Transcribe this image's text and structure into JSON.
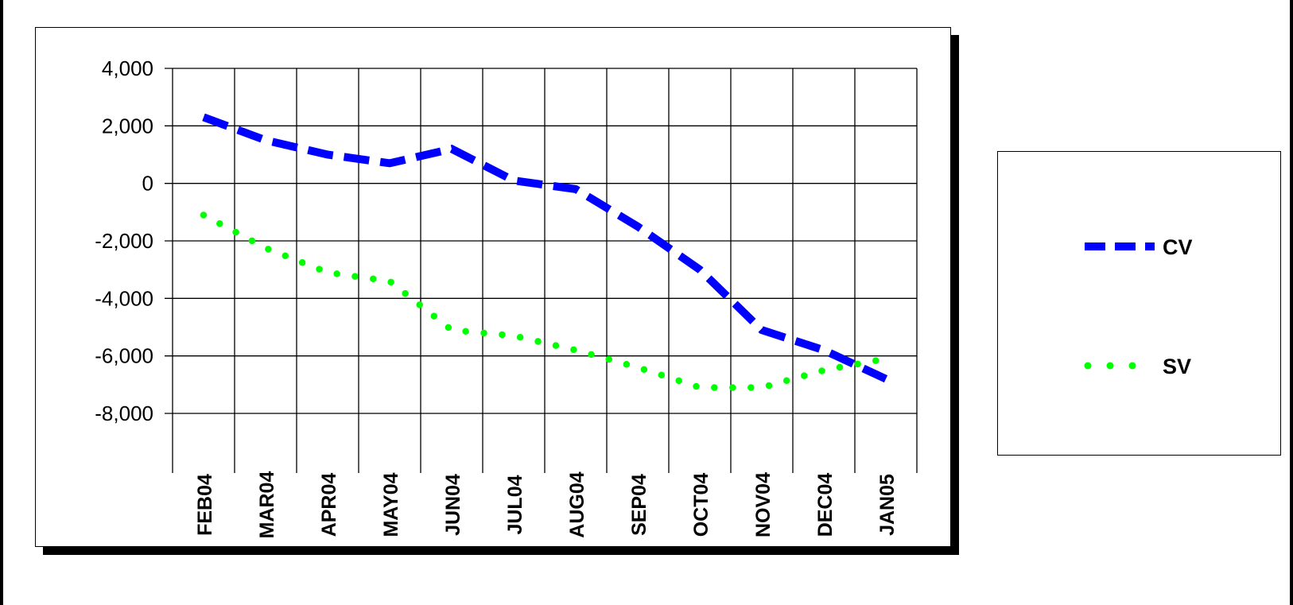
{
  "chart_data": {
    "type": "line",
    "title": "",
    "xlabel": "",
    "ylabel": "",
    "categories": [
      "FEB04",
      "MAR04",
      "APR04",
      "MAY04",
      "JUN04",
      "JUL04",
      "AUG04",
      "SEP04",
      "OCT04",
      "NOV04",
      "DEC04",
      "JAN05"
    ],
    "y_ticks": [
      "4,000",
      "2,000",
      "0",
      "-2,000",
      "-4,000",
      "-6,000",
      "-8,000"
    ],
    "ylim": [
      -8000,
      4000
    ],
    "grid": true,
    "legend_position": "right",
    "series": [
      {
        "name": "CV",
        "color": "#0000ff",
        "style": "dashed",
        "values": [
          2300,
          1500,
          1000,
          700,
          1200,
          100,
          -200,
          -1500,
          -3000,
          -5100,
          -5800,
          -6800
        ]
      },
      {
        "name": "SV",
        "color": "#00ff00",
        "style": "dotted",
        "values": [
          -1100,
          -2250,
          -3100,
          -3400,
          -5100,
          -5300,
          -5800,
          -6400,
          -7100,
          -7100,
          -6500,
          -6100
        ]
      }
    ]
  }
}
